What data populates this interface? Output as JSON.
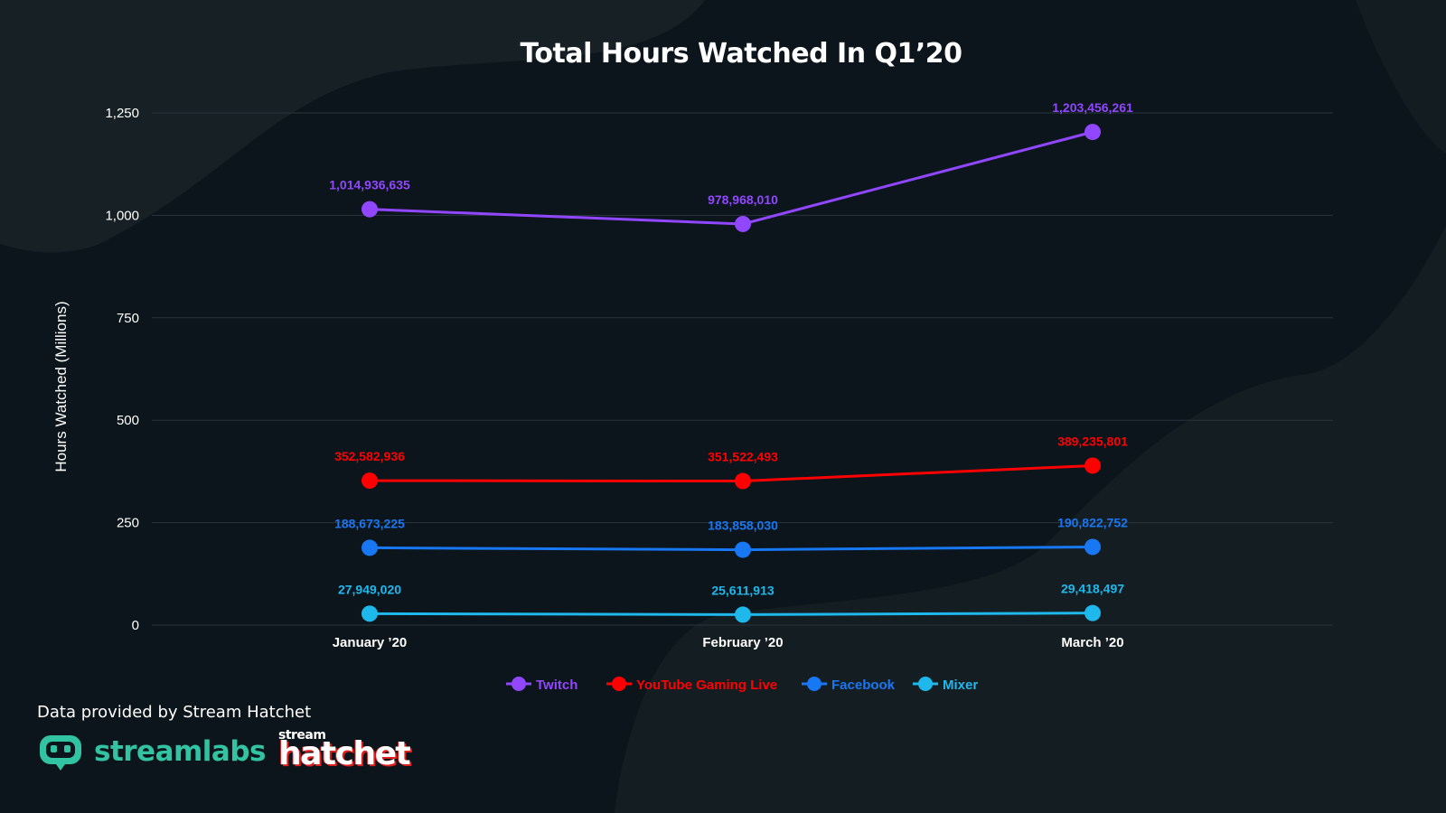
{
  "page": {
    "title": "Total Hours Watched In Q1’20",
    "credit": "Data provided by Stream Hatchet",
    "logos": {
      "streamlabs": "streamlabs",
      "streamhatchet_small": "stream",
      "streamhatchet_big": "hatchet"
    },
    "colors": {
      "background": "#0c151b",
      "twitch": "#9146ff",
      "youtube": "#ff0000",
      "facebook": "#1877f2",
      "mixer": "#1fb8ed",
      "streamlabs": "#31c3a2"
    }
  },
  "chart_data": {
    "type": "line",
    "title": "Total Hours Watched In Q1’20",
    "ylabel": "Hours Watched (Millions)",
    "xlabel": "",
    "categories": [
      "January ’20",
      "February ’20",
      "March ’20"
    ],
    "ylim": [
      0,
      1250
    ],
    "yticks": [
      0,
      250,
      500,
      750,
      1000,
      1250
    ],
    "ytick_labels": [
      "0",
      "250",
      "500",
      "750",
      "1,000",
      "1,250"
    ],
    "grid": "horizontal",
    "legend_position": "bottom-center",
    "series": [
      {
        "name": "Twitch",
        "color": "#9146ff",
        "values": [
          1014.936635,
          978.96801,
          1203.456261
        ],
        "labels": [
          "1,014,936,635",
          "978,968,010",
          "1,203,456,261"
        ]
      },
      {
        "name": "YouTube Gaming Live",
        "color": "#ff0000",
        "values": [
          352.582936,
          351.522493,
          389.235801
        ],
        "labels": [
          "352,582,936",
          "351,522,493",
          "389,235,801"
        ]
      },
      {
        "name": "Facebook",
        "color": "#1877f2",
        "values": [
          188.673225,
          183.85803,
          190.822752
        ],
        "labels": [
          "188,673,225",
          "183,858,030",
          "190,822,752"
        ]
      },
      {
        "name": "Mixer",
        "color": "#1fb8ed",
        "values": [
          27.94902,
          25.611913,
          29.418497
        ],
        "labels": [
          "27,949,020",
          "25,611,913",
          "29,418,497"
        ]
      }
    ]
  }
}
